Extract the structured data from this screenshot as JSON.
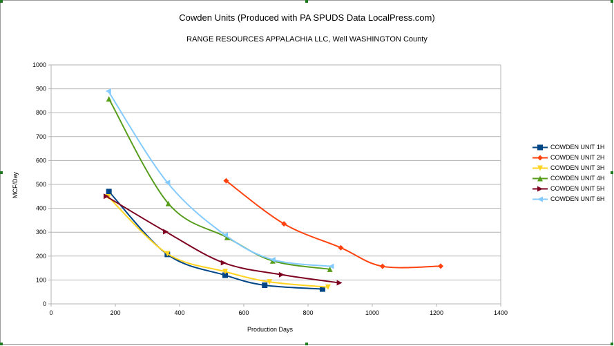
{
  "chart_data": {
    "type": "line",
    "title": "Cowden Units (Produced with PA SPUDS Data LocalPress.com)",
    "subtitle": "RANGE RESOURCES APPALACHIA LLC, Well  WASHINGTON County",
    "xlabel": "Production Days",
    "ylabel": "MCF/Day",
    "xlim": [
      0,
      1400
    ],
    "ylim": [
      0,
      1000
    ],
    "xticks": [
      0,
      200,
      400,
      600,
      800,
      1000,
      1200,
      1400
    ],
    "yticks": [
      0,
      100,
      200,
      300,
      400,
      500,
      600,
      700,
      800,
      900,
      1000
    ],
    "grid": "horizontal",
    "legend_position": "right",
    "series": [
      {
        "name": "COWDEN UNIT 1H",
        "color": "#004586",
        "marker": "square",
        "x": [
          180,
          362,
          542,
          665,
          845
        ],
        "y": [
          470,
          207,
          120,
          78,
          62
        ]
      },
      {
        "name": "COWDEN UNIT 2H",
        "color": "#ff420e",
        "marker": "diamond",
        "x": [
          545,
          725,
          902,
          1032,
          1213
        ],
        "y": [
          515,
          335,
          235,
          157,
          158
        ]
      },
      {
        "name": "COWDEN UNIT 3H",
        "color": "#ffd320",
        "marker": "triangle-down",
        "x": [
          178,
          362,
          542,
          680,
          862
        ],
        "y": [
          448,
          210,
          135,
          92,
          70
        ]
      },
      {
        "name": "COWDEN UNIT 4H",
        "color": "#579d1c",
        "marker": "triangle-up",
        "x": [
          180,
          365,
          548,
          690,
          868
        ],
        "y": [
          858,
          420,
          278,
          180,
          145
        ]
      },
      {
        "name": "COWDEN UNIT 5H",
        "color": "#7e0021",
        "marker": "triangle-right",
        "x": [
          172,
          357,
          537,
          718,
          898
        ],
        "y": [
          450,
          302,
          172,
          122,
          88
        ]
      },
      {
        "name": "COWDEN UNIT 6H",
        "color": "#83caff",
        "marker": "triangle-left",
        "x": [
          178,
          362,
          542,
          690,
          872
        ],
        "y": [
          890,
          508,
          288,
          185,
          157
        ]
      }
    ]
  }
}
